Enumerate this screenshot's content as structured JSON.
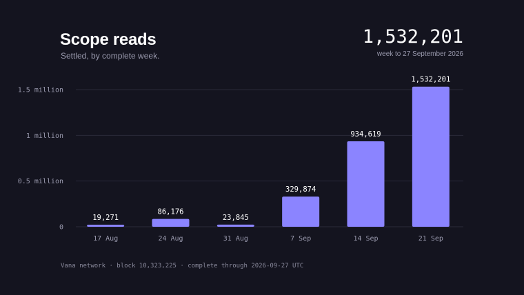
{
  "header": {
    "title": "Scope reads",
    "subtitle": "Settled, by complete week.",
    "headline_value": "1,532,201",
    "headline_caption": "week to 27 September 2026"
  },
  "footer": {
    "text": "Vana network · block 10,323,225 · complete through 2026-09-27 UTC"
  },
  "colors": {
    "bar": "#8b84ff",
    "grid": "#2a2a3a",
    "tick_label": "#9a9aae",
    "value_label": "#ffffff"
  },
  "chart_data": {
    "type": "bar",
    "title": "Scope reads",
    "subtitle": "Settled, by complete week.",
    "xlabel": "",
    "ylabel": "",
    "categories": [
      "17 Aug",
      "24 Aug",
      "31 Aug",
      "7 Sep",
      "14 Sep",
      "21 Sep"
    ],
    "values": [
      19271,
      86176,
      23845,
      329874,
      934619,
      1532201
    ],
    "value_labels": [
      "19,271",
      "86,176",
      "23,845",
      "329,874",
      "934,619",
      "1,532,201"
    ],
    "yticks": [
      {
        "value": 0,
        "label": "0"
      },
      {
        "value": 500000,
        "label": "0.5 million"
      },
      {
        "value": 1000000,
        "label": "1 million"
      },
      {
        "value": 1500000,
        "label": "1.5 million"
      }
    ],
    "ylim": [
      0,
      1500000
    ],
    "grid": true,
    "legend": "none"
  }
}
